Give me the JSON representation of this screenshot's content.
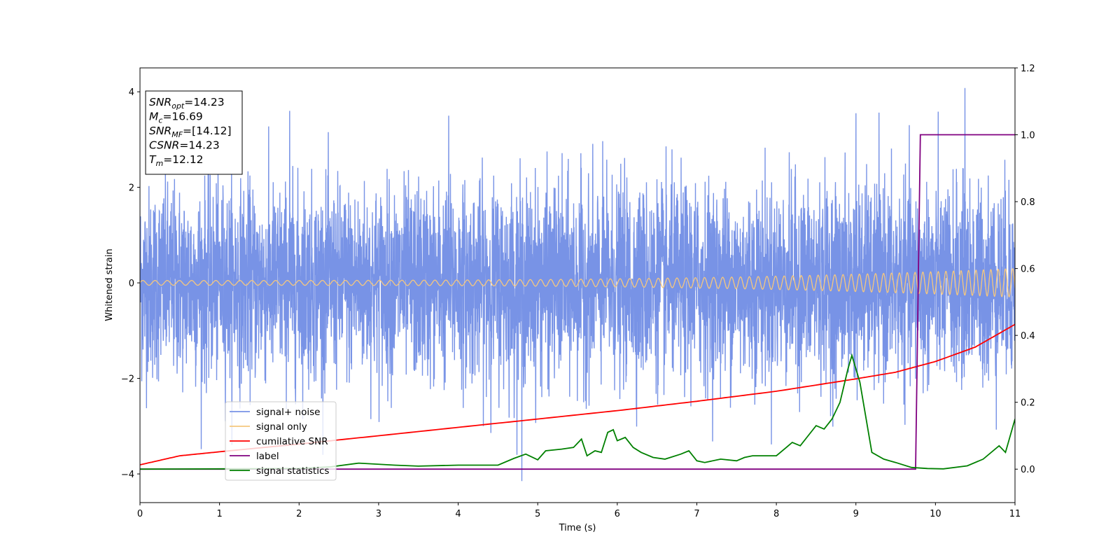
{
  "chart_data": {
    "type": "line",
    "xlabel": "Time (s)",
    "ylabel": "Whitened strain",
    "xlim": [
      0,
      11
    ],
    "ylim": [
      -4.6,
      4.5
    ],
    "y2lim": [
      -0.1,
      1.2
    ],
    "x_ticks": [
      "0",
      "1",
      "2",
      "3",
      "4",
      "5",
      "6",
      "7",
      "8",
      "9",
      "10",
      "11"
    ],
    "y_ticks": [
      "−4",
      "−2",
      "0",
      "2",
      "4"
    ],
    "y2_ticks": [
      "0.0",
      "0.2",
      "0.4",
      "0.6",
      "0.8",
      "1.0",
      "1.2"
    ],
    "grid": false,
    "legend_position": "lower-left",
    "annotation": {
      "lines": [
        {
          "sym": "SNR",
          "sub": "opt",
          "value": "=14.23"
        },
        {
          "sym": "M",
          "sub": "c",
          "value": "=16.69"
        },
        {
          "sym": "SNR",
          "sub": "MF",
          "value": "=[14.12]"
        },
        {
          "sym": "CSNR",
          "sub": "",
          "value": "=14.23"
        },
        {
          "sym": "T",
          "sub": "m",
          "value": "=12.12"
        }
      ]
    },
    "series": [
      {
        "name": "signal+ noise",
        "color": "#7893e6",
        "axis": "left",
        "description_values": {
          "std": 1.0,
          "max_spike": [
            10.37,
            4.08
          ],
          "min_spike": [
            4.8,
            -4.15
          ]
        }
      },
      {
        "name": "signal only",
        "color": "#f5c77e",
        "axis": "left",
        "chirp": {
          "amp_start": 0.05,
          "amp_end": 0.3,
          "f_start": 6.5,
          "f_end": 11
        }
      },
      {
        "name": "cumilative SNR",
        "color": "#ff0000",
        "axis": "right",
        "x": [
          0,
          0.5,
          1,
          2,
          3,
          4,
          5,
          6,
          7,
          8,
          9,
          9.5,
          10,
          10.5,
          11
        ],
        "y": [
          0.013,
          0.04,
          0.052,
          0.075,
          0.1,
          0.125,
          0.15,
          0.175,
          0.203,
          0.233,
          0.27,
          0.29,
          0.322,
          0.365,
          0.433
        ]
      },
      {
        "name": "label",
        "color": "#800080",
        "axis": "right",
        "x": [
          0,
          9.75,
          9.81,
          11
        ],
        "y": [
          0,
          0,
          1,
          1
        ]
      },
      {
        "name": "signal statistics",
        "color": "#008000",
        "axis": "right",
        "x": [
          0,
          1,
          2,
          2.4,
          2.75,
          3.2,
          3.5,
          4,
          4.5,
          4.7,
          4.85,
          5,
          5.1,
          5.3,
          5.45,
          5.55,
          5.62,
          5.72,
          5.8,
          5.88,
          5.95,
          6.0,
          6.1,
          6.2,
          6.3,
          6.45,
          6.6,
          6.8,
          6.9,
          7.0,
          7.1,
          7.3,
          7.5,
          7.6,
          7.7,
          8.0,
          8.1,
          8.2,
          8.3,
          8.4,
          8.5,
          8.6,
          8.7,
          8.8,
          8.9,
          8.95,
          9.05,
          9.2,
          9.35,
          9.5,
          9.7,
          9.9,
          10.1,
          10.4,
          10.6,
          10.8,
          10.88,
          11
        ],
        "y": [
          0,
          0.001,
          0.002,
          0.007,
          0.018,
          0.012,
          0.009,
          0.012,
          0.012,
          0.032,
          0.045,
          0.028,
          0.055,
          0.06,
          0.065,
          0.09,
          0.04,
          0.055,
          0.05,
          0.11,
          0.118,
          0.085,
          0.095,
          0.065,
          0.05,
          0.035,
          0.03,
          0.045,
          0.055,
          0.025,
          0.02,
          0.03,
          0.025,
          0.035,
          0.04,
          0.04,
          0.06,
          0.08,
          0.07,
          0.1,
          0.13,
          0.12,
          0.15,
          0.2,
          0.3,
          0.34,
          0.26,
          0.05,
          0.03,
          0.02,
          0.005,
          0.002,
          0.001,
          0.01,
          0.03,
          0.07,
          0.05,
          0.15
        ]
      }
    ]
  }
}
